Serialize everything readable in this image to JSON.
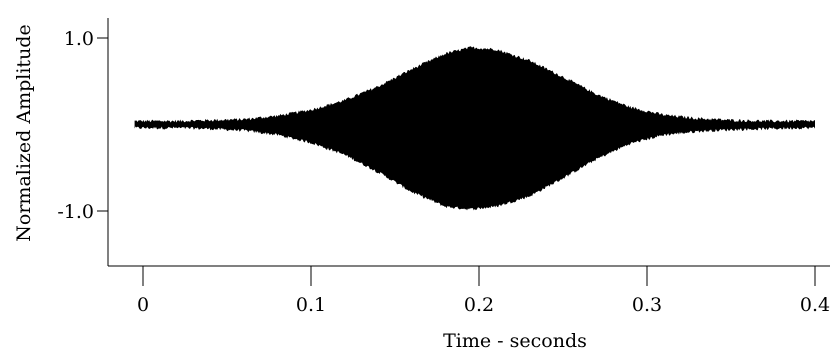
{
  "chart_data": {
    "type": "area",
    "xlabel": "Time - seconds",
    "ylabel": "Normalized Amplitude",
    "xlim": [
      -0.02,
      0.405
    ],
    "ylim": [
      -1.5,
      1.2
    ],
    "x_ticks": [
      0,
      0.1,
      0.2,
      0.3,
      0.4
    ],
    "x_tick_labels": [
      "0",
      "0.1",
      "0.2",
      "0.3",
      "0.4"
    ],
    "y_ticks": [
      1.0,
      -1.0
    ],
    "y_tick_labels": [
      "1.0",
      "-1.0"
    ],
    "grid": false,
    "legend": "none",
    "series": [
      {
        "color": "#000000",
        "x": [
          -0.005,
          0.0,
          0.02,
          0.04,
          0.06,
          0.08,
          0.1,
          0.12,
          0.14,
          0.16,
          0.18,
          0.195,
          0.21,
          0.23,
          0.25,
          0.27,
          0.29,
          0.31,
          0.33,
          0.35,
          0.37,
          0.39,
          0.4
        ],
        "upper": [
          0.04,
          0.04,
          0.04,
          0.05,
          0.06,
          0.1,
          0.17,
          0.28,
          0.44,
          0.64,
          0.82,
          0.89,
          0.87,
          0.74,
          0.55,
          0.35,
          0.2,
          0.11,
          0.07,
          0.05,
          0.04,
          0.04,
          0.04
        ],
        "lower": [
          -0.04,
          -0.04,
          -0.04,
          -0.05,
          -0.07,
          -0.12,
          -0.21,
          -0.35,
          -0.55,
          -0.78,
          -0.95,
          -0.98,
          -0.95,
          -0.83,
          -0.62,
          -0.4,
          -0.22,
          -0.12,
          -0.08,
          -0.06,
          -0.05,
          -0.04,
          -0.04
        ]
      }
    ]
  }
}
